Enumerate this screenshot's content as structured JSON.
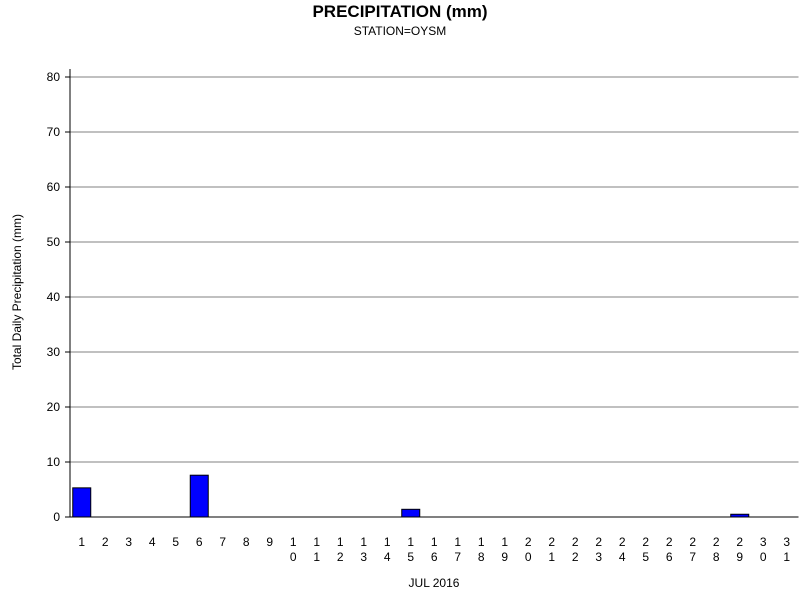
{
  "chart_data": {
    "type": "bar",
    "title": "PRECIPITATION (mm)",
    "subtitle": "STATION=OYSM",
    "x_label": "JUL 2016",
    "y_label": "Total Daily Precipitation (mm)",
    "categories": [
      "1",
      "2",
      "3",
      "4",
      "5",
      "6",
      "7",
      "8",
      "9",
      "10",
      "11",
      "12",
      "13",
      "14",
      "15",
      "16",
      "17",
      "18",
      "19",
      "20",
      "21",
      "22",
      "23",
      "24",
      "25",
      "26",
      "27",
      "28",
      "29",
      "30",
      "31"
    ],
    "values": [
      5.3,
      0,
      0,
      0,
      0,
      7.6,
      0,
      0,
      0,
      0,
      0,
      0,
      0,
      0,
      1.4,
      0,
      0,
      0,
      0,
      0,
      0,
      0,
      0,
      0,
      0,
      0,
      0,
      0,
      0.5,
      0,
      0
    ],
    "color": "#0000ff",
    "ylim": [
      0,
      80
    ],
    "yticks": [
      0,
      10,
      20,
      30,
      40,
      50,
      60,
      70,
      80
    ],
    "grid": true
  }
}
